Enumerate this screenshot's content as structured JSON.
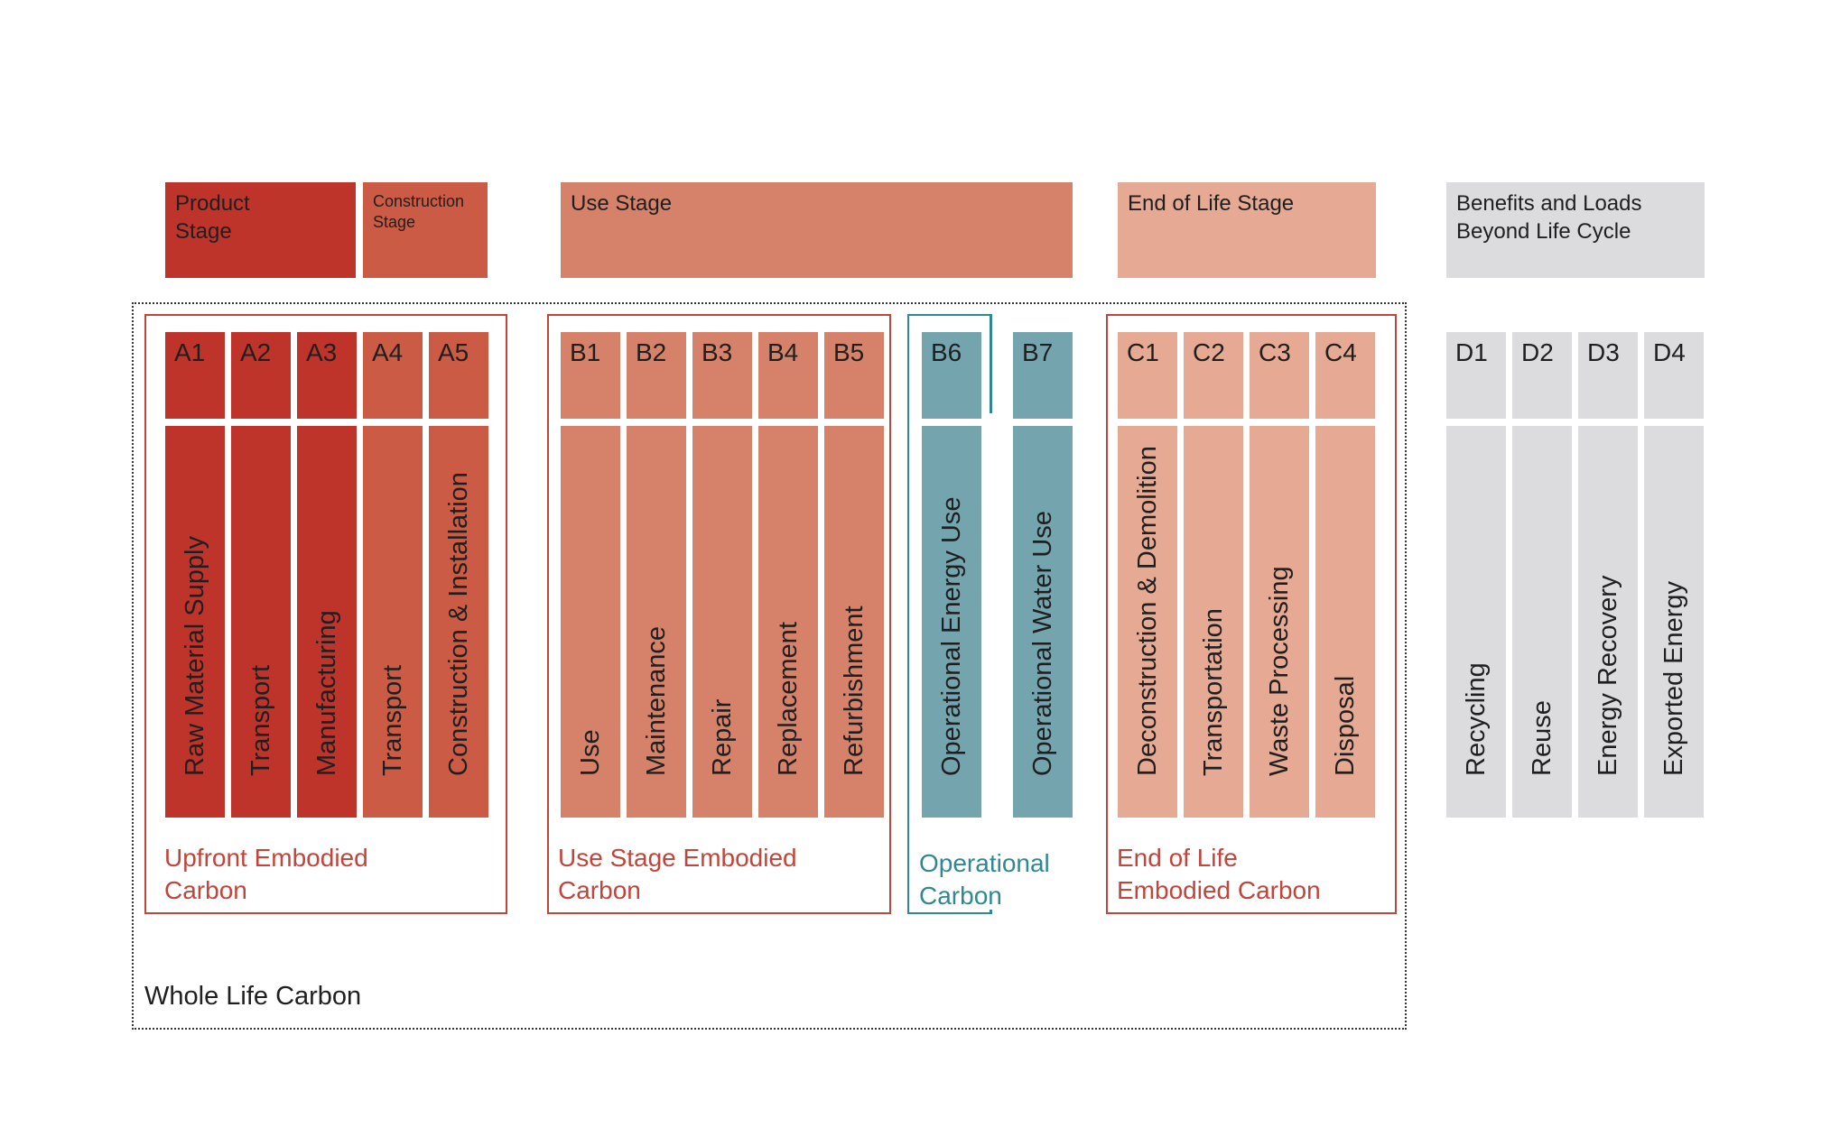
{
  "colors": {
    "product": "#be342b",
    "construction": "#cb5b45",
    "use": "#d6826a",
    "end_of_life": "#e5a994",
    "operational": "#74a4ae",
    "beyond": "#dcdcdf",
    "frame_red": "#c0453a",
    "frame_teal": "#2f8895"
  },
  "stages": {
    "product": "Product\nStage",
    "construction": "Construction\nStage",
    "use": "Use Stage",
    "end_of_life": "End of Life Stage",
    "beyond": "Benefits and Loads\nBeyond Life Cycle"
  },
  "modules": [
    {
      "code": "A1",
      "label": "Raw Material Supply",
      "color": "product"
    },
    {
      "code": "A2",
      "label": "Transport",
      "color": "product"
    },
    {
      "code": "A3",
      "label": "Manufacturing",
      "color": "product"
    },
    {
      "code": "A4",
      "label": "Transport",
      "color": "construction"
    },
    {
      "code": "A5",
      "label": "Construction & Installation",
      "color": "construction"
    },
    {
      "code": "B1",
      "label": "Use",
      "color": "use"
    },
    {
      "code": "B2",
      "label": "Maintenance",
      "color": "use"
    },
    {
      "code": "B3",
      "label": "Repair",
      "color": "use"
    },
    {
      "code": "B4",
      "label": "Replacement",
      "color": "use"
    },
    {
      "code": "B5",
      "label": "Refurbishment",
      "color": "use"
    },
    {
      "code": "B6",
      "label": "Operational Energy Use",
      "color": "operational"
    },
    {
      "code": "B7",
      "label": "Operational Water Use",
      "color": "operational"
    },
    {
      "code": "C1",
      "label": "Deconstruction & Demolition",
      "color": "end_of_life"
    },
    {
      "code": "C2",
      "label": "Transportation",
      "color": "end_of_life"
    },
    {
      "code": "C3",
      "label": "Waste Processing",
      "color": "end_of_life"
    },
    {
      "code": "C4",
      "label": "Disposal",
      "color": "end_of_life"
    },
    {
      "code": "D1",
      "label": "Recycling",
      "color": "beyond"
    },
    {
      "code": "D2",
      "label": "Reuse",
      "color": "beyond"
    },
    {
      "code": "D3",
      "label": "Energy Recovery",
      "color": "beyond"
    },
    {
      "code": "D4",
      "label": "Exported Energy",
      "color": "beyond"
    }
  ],
  "groups": {
    "upfront": "Upfront Embodied\nCarbon",
    "use_stage": "Use Stage Embodied\nCarbon",
    "operational": "Operational\nCarbon",
    "end_of_life": "End of Life\nEmbodied Carbon"
  },
  "whole_life": "Whole Life Carbon"
}
